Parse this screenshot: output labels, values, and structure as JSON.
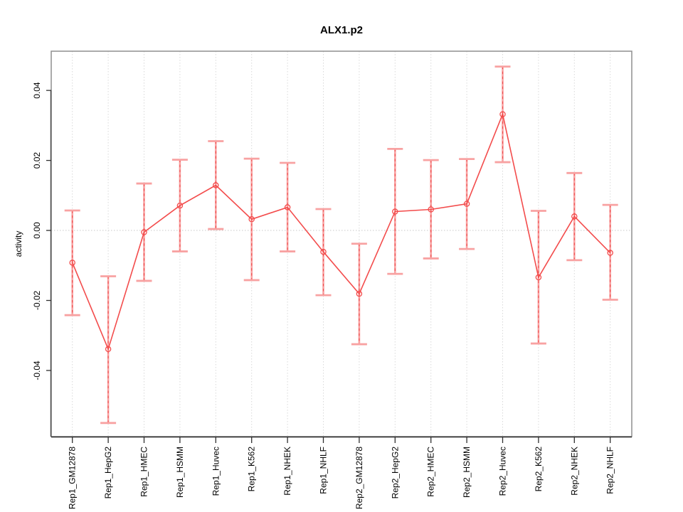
{
  "chart_data": {
    "type": "line",
    "title": "ALX1.p2",
    "xlabel": "",
    "ylabel": "activity",
    "ylim": [
      -0.0589,
      0.0512
    ],
    "grid": "vertical-dotted-per-category-plus-zero-line",
    "legend": "none",
    "categories": [
      "Rep1_GM12878",
      "Rep1_HepG2",
      "Rep1_HMEC",
      "Rep1_HSMM",
      "Rep1_Huvec",
      "Rep1_K562",
      "Rep1_NHEK",
      "Rep1_NHLF",
      "Rep2_GM12878",
      "Rep2_HepG2",
      "Rep2_HMEC",
      "Rep2_HSMM",
      "Rep2_Huvec",
      "Rep2_K562",
      "Rep2_NHEK",
      "Rep2_NHLF"
    ],
    "series": [
      {
        "name": "activity",
        "marker": "open-circle",
        "values": [
          -0.0092,
          -0.0339,
          -0.0005,
          0.0071,
          0.0129,
          0.0032,
          0.0066,
          -0.0061,
          -0.0181,
          0.0054,
          0.006,
          0.0076,
          0.0332,
          -0.0134,
          0.004,
          -0.0064
        ],
        "error_upper": [
          0.0057,
          -0.0131,
          0.0134,
          0.0202,
          0.0255,
          0.0205,
          0.0193,
          0.0061,
          -0.0038,
          0.0233,
          0.0201,
          0.0204,
          0.0468,
          0.0056,
          0.0164,
          0.0073
        ],
        "error_lower": [
          -0.0242,
          -0.055,
          -0.0144,
          -0.006,
          0.0004,
          -0.0142,
          -0.006,
          -0.0185,
          -0.0325,
          -0.0124,
          -0.008,
          -0.0053,
          0.0195,
          -0.0323,
          -0.0085,
          -0.0198
        ]
      }
    ],
    "yticks": {
      "values": [
        -0.04,
        -0.02,
        0.0,
        0.02,
        0.04
      ],
      "labels": [
        "-0.04",
        "-0.02",
        "0.00",
        "0.02",
        "0.04"
      ]
    },
    "colors": {
      "series_line": "#f34c4c",
      "marker_stroke": "#f34c4c",
      "error_bar": "#f8a2a2",
      "error_bar_dash": "#f05252",
      "grid_line": "#d9d9d9",
      "zero_line": "#c9c9c9",
      "box_border": "#8f8f8f",
      "axis_line_bottom": "#2b2b2b",
      "axis_line_left": "#4f4f4f",
      "tick_mark": "#303030",
      "text": "#000000"
    }
  }
}
